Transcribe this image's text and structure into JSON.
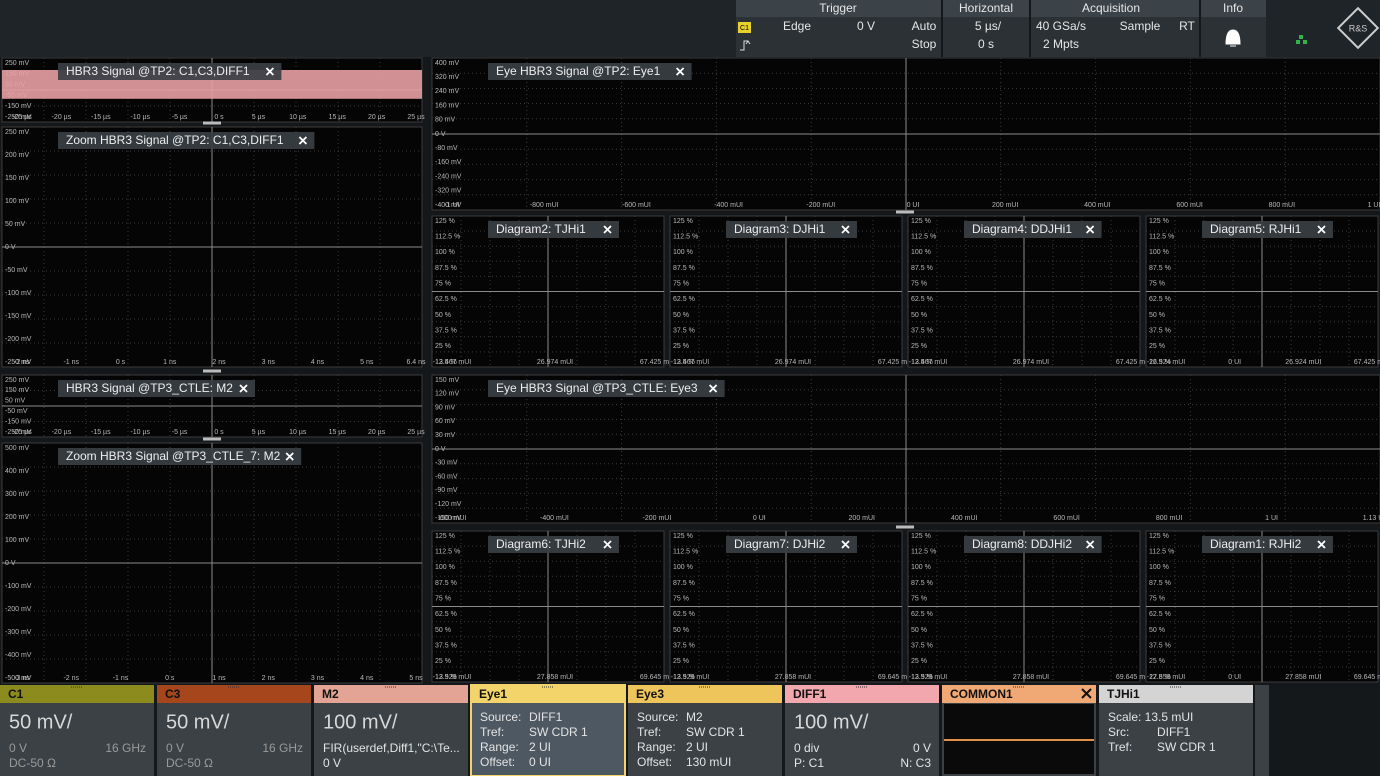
{
  "header": {
    "trigger": {
      "title": "Trigger",
      "source": "C1",
      "type": "Edge",
      "level": "0 V",
      "mode": "Auto",
      "state": "Stop"
    },
    "horizontal": {
      "title": "Horizontal",
      "scale": "5 µs/",
      "position": "0 s"
    },
    "acquisition": {
      "title": "Acquisition",
      "rate": "40 GSa/s",
      "mode": "Sample",
      "rt": "RT",
      "points": "2 Mpts"
    },
    "info": {
      "title": "Info"
    },
    "logo": "R&S"
  },
  "panels": [
    {
      "title": "HBR3 Signal @TP2: C1,C3,DIFF1",
      "kind": "band",
      "y_labels": [
        "250 mV",
        "150 mV",
        "50 mV",
        "-50 mV",
        "-150 mV",
        "-250 mV"
      ],
      "x_labels": [
        "-25 µs",
        "-20 µs",
        "-15 µs",
        "-10 µs",
        "-5 µs",
        "0 s",
        "5 µs",
        "10 µs",
        "15 µs",
        "20 µs",
        "25 µs"
      ]
    },
    {
      "title": "Zoom HBR3 Signal @TP2: C1,C3,DIFF1",
      "kind": "wave",
      "y_labels": [
        "250 mV",
        "200 mV",
        "150 mV",
        "100 mV",
        "50 mV",
        "0 V",
        "-50 mV",
        "-100 mV",
        "-150 mV",
        "-200 mV",
        "-250 mV"
      ],
      "x_labels": [
        "-2 ns",
        "-1 ns",
        "0 s",
        "1 ns",
        "2 ns",
        "3 ns",
        "4 ns",
        "5 ns",
        "6.4 ns"
      ]
    },
    {
      "title": "HBR3 Signal @TP3_CTLE: M2",
      "kind": "band",
      "y_labels": [
        "250 mV",
        "150 mV",
        "50 mV",
        "-50 mV",
        "-150 mV",
        "-250 mV"
      ],
      "x_labels": [
        "-25 µs",
        "-20 µs",
        "-15 µs",
        "-10 µs",
        "-5 µs",
        "0 s",
        "5 µs",
        "10 µs",
        "15 µs",
        "20 µs",
        "25 µs"
      ]
    },
    {
      "title": "Zoom HBR3 Signal @TP3_CTLE_7: M2",
      "kind": "wave2",
      "y_labels": [
        "500 mV",
        "400 mV",
        "300 mV",
        "200 mV",
        "100 mV",
        "0 V",
        "-100 mV",
        "-200 mV",
        "-300 mV",
        "-400 mV",
        "-500 mV"
      ],
      "x_labels": [
        "-3 ns",
        "-2 ns",
        "-1 ns",
        "0 s",
        "1 ns",
        "2 ns",
        "3 ns",
        "4 ns",
        "5 ns"
      ]
    },
    {
      "title": "Eye HBR3 Signal @TP2: Eye1",
      "kind": "eye",
      "y_labels": [
        "400 mV",
        "320 mV",
        "240 mV",
        "160 mV",
        "80 mV",
        "0 V",
        "-80 mV",
        "-160 mV",
        "-240 mV",
        "-320 mV",
        "-400 mV"
      ],
      "x_labels": [
        "-1 UI",
        "-800 mUI",
        "-600 mUI",
        "-400 mUI",
        "-200 mUI",
        "0 UI",
        "200 mUI",
        "400 mUI",
        "600 mUI",
        "800 mUI",
        "1 UI"
      ]
    },
    {
      "title": "Eye HBR3 Signal @TP3_CTLE: Eye3",
      "kind": "eye",
      "y_labels": [
        "150 mV",
        "120 mV",
        "90 mV",
        "60 mV",
        "30 mV",
        "0 V",
        "-30 mV",
        "-60 mV",
        "-90 mV",
        "-120 mV",
        "-150 mV"
      ],
      "x_labels": [
        "-600 mUI",
        "-400 mUI",
        "-200 mUI",
        "0 UI",
        "200 mUI",
        "400 mUI",
        "600 mUI",
        "800 mUI",
        "1 UI",
        "1.13 UI"
      ]
    }
  ],
  "histogram_y_labels": [
    "125 %",
    "112.5 %",
    "100 %",
    "87.5 %",
    "75 %",
    "62.5 %",
    "50 %",
    "37.5 %",
    "25 %",
    "12.5 %"
  ],
  "histograms": [
    {
      "title": "Diagram2: TJHi1",
      "color": "#9a9a9a",
      "shape": "gauss",
      "x_labels": [
        "-13.467 mUI",
        "26.974 mUI",
        "67.425 mUI"
      ]
    },
    {
      "title": "Diagram3: DJHi1",
      "color": "#5a82b8",
      "shape": "bimodal",
      "x_labels": [
        "-13.467 mUI",
        "26.974 mUI",
        "67.425 mUI"
      ]
    },
    {
      "title": "Diagram4: DDJHi1",
      "color": "#2f5fd0",
      "shape": "spiky",
      "x_labels": [
        "-13.467 mUI",
        "26.974 mUI",
        "67.425 mUI"
      ]
    },
    {
      "title": "Diagram5: RJHi1",
      "color": "#c0305a",
      "shape": "narrow",
      "x_labels": [
        "-26.924 mUI",
        "0 UI",
        "26.924 mUI",
        "67.425 mUI"
      ]
    },
    {
      "title": "Diagram6: TJHi2",
      "color": "#9a9a9a",
      "shape": "gauss",
      "x_labels": [
        "-13.929 mUI",
        "27.858 mUI",
        "69.645 mUI"
      ]
    },
    {
      "title": "Diagram7: DJHi2",
      "color": "#5a82b8",
      "shape": "gauss",
      "x_labels": [
        "-13.929 mUI",
        "27.858 mUI",
        "69.645 mUI"
      ]
    },
    {
      "title": "Diagram8: DDJHi2",
      "color": "#2f5fd0",
      "shape": "spiky",
      "x_labels": [
        "-13.929 mUI",
        "27.858 mUI",
        "69.645 mUI"
      ]
    },
    {
      "title": "Diagram1: RJHi2",
      "color": "#c0305a",
      "shape": "narrow",
      "x_labels": [
        "-27.858 mUI",
        "0 UI",
        "27.858 mUI",
        "69.645 mUI"
      ]
    }
  ],
  "tabs": [
    {
      "name": "C1",
      "color": "#8c8c1e",
      "big": "50 mV/",
      "rows": [
        [
          "0 V",
          "16 GHz"
        ],
        [
          "DC-50 Ω"
        ]
      ]
    },
    {
      "name": "C3",
      "color": "#a5461c",
      "big": "50 mV/",
      "rows": [
        [
          "0 V",
          "16 GHz"
        ],
        [
          "DC-50 Ω"
        ]
      ]
    },
    {
      "name": "M2",
      "color": "#e3a495",
      "big": "100 mV/",
      "rows": [
        [
          "FIR(userdef,Diff1,\"C:\\Te..."
        ],
        [
          "0 V"
        ]
      ]
    },
    {
      "name": "Eye1",
      "color": "#f2d46a",
      "rows": [
        [
          "Source:",
          "DIFF1"
        ],
        [
          "Tref:",
          "SW CDR 1"
        ],
        [
          "Range:",
          "2 UI"
        ],
        [
          "Offset:",
          "0 UI"
        ]
      ]
    },
    {
      "name": "Eye3",
      "color": "#eec55a",
      "rows": [
        [
          "Source:",
          "M2"
        ],
        [
          "Tref:",
          "SW CDR 1"
        ],
        [
          "Range:",
          "2 UI"
        ],
        [
          "Offset:",
          "130 mUI"
        ]
      ]
    },
    {
      "name": "DIFF1",
      "color": "#f2a6ad",
      "big": "100 mV/",
      "rows": [
        [
          "0 div",
          "0 V"
        ],
        [
          "P: C1",
          "N: C3"
        ]
      ]
    },
    {
      "name": "COMMON1",
      "color": "#f0a874",
      "rows": []
    },
    {
      "name": "TJHi1",
      "color": "#d4d4d4",
      "rows": [
        [
          "Scale: 13.5 mUI"
        ],
        [
          "Src:",
          "DIFF1"
        ],
        [
          "Tref:",
          "SW CDR 1"
        ]
      ]
    }
  ]
}
